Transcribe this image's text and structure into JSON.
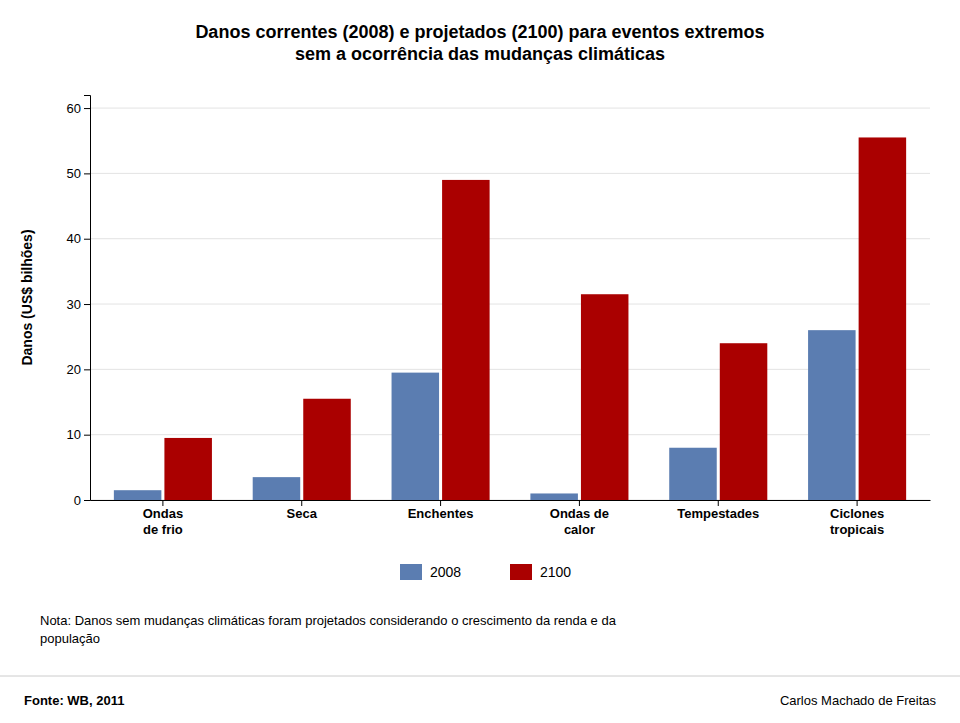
{
  "chart_data": {
    "type": "bar",
    "title": "Danos correntes (2008) e projetados (2100) para eventos extremos\nsem a ocorrência das mudanças climáticas",
    "ylabel": "Danos (US$ bilhões)",
    "categories": [
      "Ondas\nde frio",
      "Seca",
      "Enchentes",
      "Ondas de\ncalor",
      "Tempestades",
      "Ciclones\ntropicais"
    ],
    "series": [
      {
        "name": "2008",
        "color": "#5b7db1",
        "values": [
          1.5,
          3.5,
          19.5,
          1.0,
          8.0,
          26.0
        ]
      },
      {
        "name": "2100",
        "color": "#aa0000",
        "values": [
          9.5,
          15.5,
          49.0,
          31.5,
          24.0,
          55.5
        ]
      }
    ],
    "ylim": [
      0,
      62
    ],
    "yticks": [
      0,
      10,
      20,
      30,
      40,
      50,
      60
    ],
    "grid": true,
    "legend": "bottom",
    "annotations": [
      "Nota: Danos sem mudanças climáticas foram projetados considerando o crescimento da renda e da\npopulação",
      "Fonte: WB, 2011",
      "Carlos Machado de Freitas"
    ]
  }
}
